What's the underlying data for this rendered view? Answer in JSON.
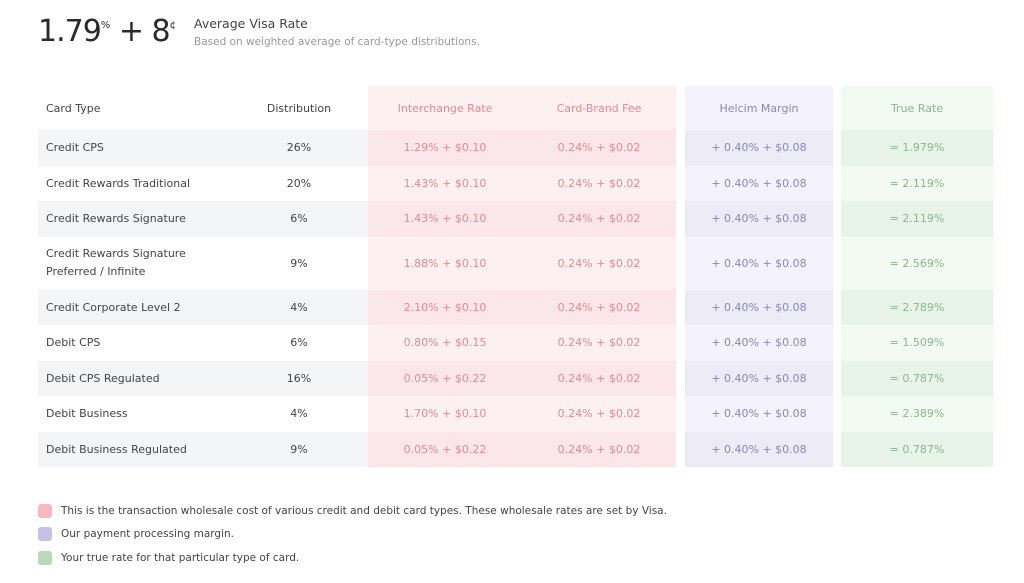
{
  "summary": {
    "rate_pct": "1.79",
    "pct_sym": "%",
    "plus": "+",
    "rate_cents": "8",
    "cent_sym": "¢",
    "title": "Average Visa Rate",
    "subtitle": "Based on weighted average of card-type distributions."
  },
  "table": {
    "headers": [
      "Card Type",
      "Distribution",
      "Interchange Rate",
      "Card-Brand Fee",
      "Helcim Margin",
      "True Rate"
    ],
    "rows": [
      [
        "Credit CPS",
        "26%",
        "1.29% + $0.10",
        "0.24% + $0.02",
        "+  0.40% + $0.08",
        "=  1.979%"
      ],
      [
        "Credit Rewards Traditional",
        "20%",
        "1.43% + $0.10",
        "0.24% + $0.02",
        "+  0.40% + $0.08",
        "=  2.119%"
      ],
      [
        "Credit Rewards Signature",
        "6%",
        "1.43% + $0.10",
        "0.24% + $0.02",
        "+  0.40% + $0.08",
        "=  2.119%"
      ],
      [
        "Credit Rewards Signature Preferred / Infinite",
        "9%",
        "1.88% + $0.10",
        "0.24% + $0.02",
        "+  0.40% + $0.08",
        "=  2.569%"
      ],
      [
        "Credit Corporate Level 2",
        "4%",
        "2.10% + $0.10",
        "0.24% + $0.02",
        "+  0.40% + $0.08",
        "=  2.789%"
      ],
      [
        "Debit CPS",
        "6%",
        "0.80% + $0.15",
        "0.24% + $0.02",
        "+  0.40% + $0.08",
        "=  1.509%"
      ],
      [
        "Debit CPS Regulated",
        "16%",
        "0.05% + $0.22",
        "0.24% + $0.02",
        "+  0.40% + $0.08",
        "=  0.787%"
      ],
      [
        "Debit Business",
        "4%",
        "1.70% + $0.10",
        "0.24% + $0.02",
        "+  0.40% + $0.08",
        "=  2.389%"
      ],
      [
        "Debit Business Regulated",
        "9%",
        "0.05% + $0.22",
        "0.24% + $0.02",
        "+  0.40% + $0.08",
        "=  0.787%"
      ]
    ]
  },
  "legend": [
    {
      "color": "#f7b8c0",
      "text": "This is the transaction wholesale cost of various credit and debit card types. These wholesale rates are set by Visa."
    },
    {
      "color": "#c7bfe6",
      "text": "Our payment processing margin."
    },
    {
      "color": "#b9d9b9",
      "text": "Your true rate for that particular type of card."
    }
  ]
}
